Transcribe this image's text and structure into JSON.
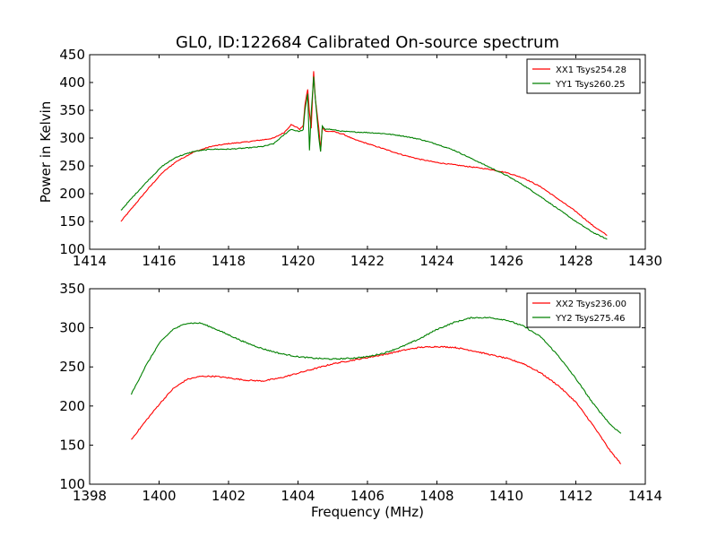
{
  "figure": {
    "title": "GL0, ID:122684 Calibrated On-source spectrum"
  },
  "chart_data": [
    {
      "type": "line",
      "title": "GL0, ID:122684 Calibrated On-source spectrum",
      "xlabel": "",
      "ylabel": "Power in Kelvin",
      "xlim": [
        1414,
        1430
      ],
      "ylim": [
        100,
        450
      ],
      "xticks": [
        1414,
        1416,
        1418,
        1420,
        1422,
        1424,
        1426,
        1428,
        1430
      ],
      "yticks": [
        100,
        150,
        200,
        250,
        300,
        350,
        400,
        450
      ],
      "grid": false,
      "legend_position": "top-right",
      "series": [
        {
          "name": "XX1 Tsys254.28",
          "color": "#ff0000",
          "x": [
            1414.9,
            1415.3,
            1415.7,
            1416.1,
            1416.5,
            1417.0,
            1417.5,
            1418.0,
            1418.5,
            1419.0,
            1419.3,
            1419.6,
            1419.8,
            1419.95,
            1420.05,
            1420.15,
            1420.2,
            1420.28,
            1420.33,
            1420.38,
            1420.45,
            1420.5,
            1420.6,
            1420.65,
            1420.7,
            1420.75,
            1420.8,
            1420.9,
            1421.0,
            1421.3,
            1421.6,
            1422.0,
            1422.5,
            1423.0,
            1423.5,
            1424.0,
            1424.5,
            1425.0,
            1425.5,
            1426.0,
            1426.5,
            1427.0,
            1427.5,
            1428.0,
            1428.5,
            1428.9
          ],
          "y": [
            150,
            180,
            210,
            238,
            258,
            275,
            285,
            290,
            293,
            297,
            300,
            310,
            324,
            320,
            316,
            322,
            360,
            388,
            345,
            318,
            420,
            370,
            318,
            278,
            320,
            315,
            312,
            312,
            312,
            307,
            298,
            290,
            280,
            270,
            262,
            256,
            252,
            248,
            244,
            238,
            228,
            212,
            190,
            168,
            142,
            125
          ]
        },
        {
          "name": "YY1 Tsys260.25",
          "color": "#008000",
          "x": [
            1414.9,
            1415.3,
            1415.7,
            1416.1,
            1416.5,
            1417.0,
            1417.5,
            1418.0,
            1418.5,
            1419.0,
            1419.3,
            1419.6,
            1419.8,
            1419.95,
            1420.05,
            1420.15,
            1420.2,
            1420.28,
            1420.33,
            1420.38,
            1420.45,
            1420.5,
            1420.6,
            1420.65,
            1420.7,
            1420.75,
            1420.8,
            1420.9,
            1421.0,
            1421.3,
            1421.6,
            1422.0,
            1422.5,
            1423.0,
            1423.5,
            1424.0,
            1424.5,
            1425.0,
            1425.5,
            1426.0,
            1426.5,
            1427.0,
            1427.5,
            1428.0,
            1428.5,
            1428.9
          ],
          "y": [
            170,
            198,
            225,
            250,
            266,
            276,
            280,
            280,
            282,
            285,
            290,
            306,
            316,
            313,
            312,
            315,
            350,
            380,
            278,
            345,
            410,
            370,
            300,
            275,
            322,
            318,
            316,
            316,
            315,
            312,
            311,
            310,
            308,
            304,
            298,
            289,
            278,
            263,
            248,
            233,
            215,
            194,
            172,
            150,
            130,
            118
          ]
        }
      ]
    },
    {
      "type": "line",
      "title": "",
      "xlabel": "Frequency (MHz)",
      "ylabel": "",
      "xlim": [
        1398,
        1414
      ],
      "ylim": [
        100,
        350
      ],
      "xticks": [
        1398,
        1400,
        1402,
        1404,
        1406,
        1408,
        1410,
        1412,
        1414
      ],
      "yticks": [
        100,
        150,
        200,
        250,
        300,
        350
      ],
      "grid": false,
      "legend_position": "top-right",
      "series": [
        {
          "name": "XX2 Tsys236.00",
          "color": "#ff0000",
          "x": [
            1399.2,
            1399.6,
            1400.0,
            1400.4,
            1400.8,
            1401.2,
            1401.6,
            1402.0,
            1402.5,
            1403.0,
            1403.5,
            1404.0,
            1404.5,
            1405.0,
            1405.5,
            1406.0,
            1406.5,
            1407.0,
            1407.5,
            1408.0,
            1408.5,
            1409.0,
            1409.5,
            1410.0,
            1410.5,
            1411.0,
            1411.5,
            1412.0,
            1412.5,
            1413.0,
            1413.3
          ],
          "y": [
            157,
            180,
            202,
            222,
            234,
            238,
            238,
            236,
            233,
            232,
            236,
            242,
            248,
            254,
            258,
            262,
            266,
            271,
            275,
            276,
            275,
            271,
            266,
            261,
            254,
            242,
            226,
            205,
            175,
            142,
            126
          ]
        },
        {
          "name": "YY2 Tsys275.46",
          "color": "#008000",
          "x": [
            1399.2,
            1399.6,
            1400.0,
            1400.4,
            1400.8,
            1401.2,
            1401.6,
            1402.0,
            1402.5,
            1403.0,
            1403.5,
            1404.0,
            1404.5,
            1405.0,
            1405.5,
            1406.0,
            1406.5,
            1407.0,
            1407.5,
            1408.0,
            1408.5,
            1409.0,
            1409.5,
            1410.0,
            1410.5,
            1411.0,
            1411.5,
            1412.0,
            1412.5,
            1413.0,
            1413.3
          ],
          "y": [
            215,
            250,
            280,
            298,
            306,
            306,
            299,
            291,
            281,
            273,
            267,
            263,
            261,
            260,
            261,
            263,
            268,
            276,
            286,
            298,
            307,
            313,
            313,
            310,
            302,
            288,
            264,
            235,
            203,
            176,
            165
          ]
        }
      ]
    }
  ]
}
